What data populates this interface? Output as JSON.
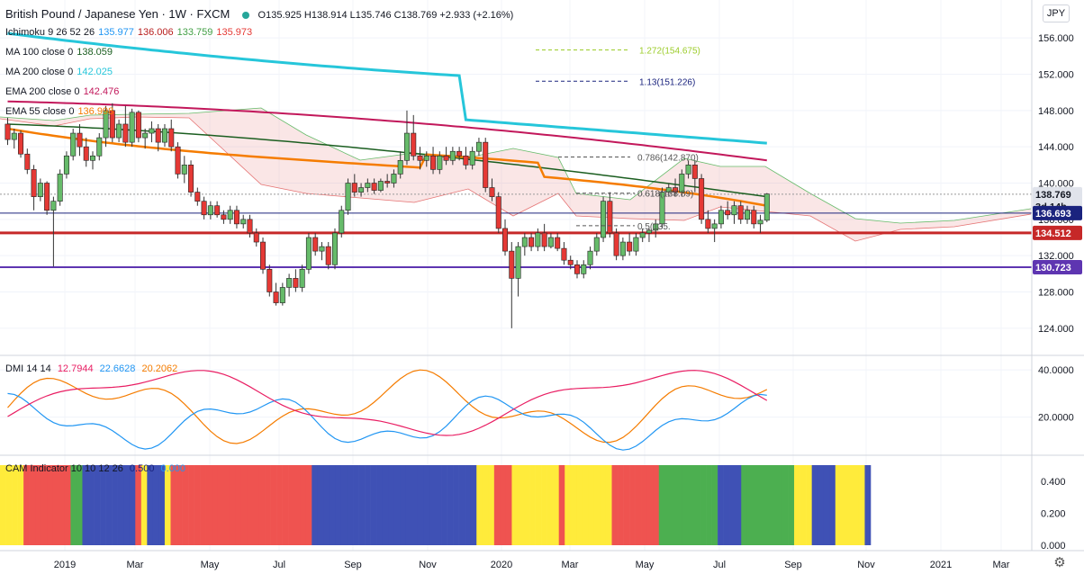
{
  "header": {
    "symbol_title": "British Pound / Japanese Yen · 1W · FXCM",
    "ohlc": "O135.925  H138.914  L135.746  C138.769  +2.933 (+2.16%)",
    "currency_button": "JPY"
  },
  "indicators": [
    {
      "name": "Ichimoku 9 26 52 26",
      "values": [
        {
          "v": "135.977",
          "color": "#2196f3"
        },
        {
          "v": "136.006",
          "color": "#b71c1c"
        },
        {
          "v": "133.759",
          "color": "#43a047"
        },
        {
          "v": "135.973",
          "color": "#e53935"
        }
      ]
    },
    {
      "name": "MA 100 close 0",
      "values": [
        {
          "v": "138.059",
          "color": "#1b5e20"
        }
      ]
    },
    {
      "name": "MA 200 close 0",
      "values": [
        {
          "v": "142.025",
          "color": "#26c6da"
        }
      ]
    },
    {
      "name": "EMA 200 close 0",
      "values": [
        {
          "v": "142.476",
          "color": "#c2185b"
        }
      ]
    },
    {
      "name": "EMA 55 close 0",
      "values": [
        {
          "v": "136.998",
          "color": "#f57c00"
        }
      ]
    }
  ],
  "fib_labels": [
    {
      "text": "1.272(154.675)",
      "color": "#9ccc2a"
    },
    {
      "text": "1.13(151.226)",
      "color": "#1a237e"
    },
    {
      "text": "0.786(142.870)",
      "color": "#555555"
    },
    {
      "text": "0.618(138.89)",
      "color": "#555555"
    },
    {
      "text": "0.5(135.",
      "color": "#555555"
    }
  ],
  "price_badges": [
    {
      "text": "138.769",
      "bg": "#e0e3eb",
      "fg": "#131722",
      "price": 138.769
    },
    {
      "text": "3d 14h",
      "bg": "#e0e3eb",
      "fg": "#131722",
      "price": 137.4
    },
    {
      "text": "136.693",
      "bg": "#1a237e",
      "fg": "#ffffff",
      "price": 136.693
    },
    {
      "text": "134.512",
      "bg": "#c62828",
      "fg": "#ffffff",
      "price": 134.512
    },
    {
      "text": "130.723",
      "bg": "#5e35b1",
      "fg": "#ffffff",
      "price": 130.723
    }
  ],
  "dmi": {
    "label": "DMI 14 14",
    "values": [
      {
        "v": "12.7944",
        "color": "#e91e63"
      },
      {
        "v": "22.6628",
        "color": "#2196f3"
      },
      {
        "v": "20.2062",
        "color": "#f57c00"
      }
    ]
  },
  "cam": {
    "label": "CAM Indicator 10 10 12 26",
    "values": [
      {
        "v": "0.500",
        "color": "#1a237e"
      },
      {
        "v": "0.000",
        "color": "#2196f3"
      }
    ]
  },
  "chart_data": {
    "type": "candlestick",
    "timeframe": "1W",
    "y_axis": {
      "range": [
        122,
        158
      ],
      "ticks": [
        "156.000",
        "152.000",
        "148.000",
        "144.000",
        "140.000",
        "136.000",
        "132.000",
        "128.000",
        "124.000"
      ]
    },
    "dmi_axis": {
      "range": [
        5,
        45
      ],
      "ticks": [
        "40.0000",
        "20.0000"
      ]
    },
    "cam_axis": {
      "range": [
        0,
        0.5
      ],
      "ticks": [
        "0.400",
        "0.200",
        "0.000"
      ]
    },
    "x_labels": [
      "2019",
      "Mar",
      "May",
      "Jul",
      "Sep",
      "Nov",
      "2020",
      "Mar",
      "May",
      "Jul",
      "Sep",
      "Nov",
      "2021",
      "Mar"
    ],
    "candles": [
      [
        146.5,
        147.2,
        144.2,
        144.8
      ],
      [
        144.8,
        146.0,
        143.8,
        145.5
      ],
      [
        145.5,
        145.8,
        142.8,
        143.2
      ],
      [
        143.2,
        143.8,
        141.0,
        141.5
      ],
      [
        141.5,
        142.0,
        137.0,
        138.5
      ],
      [
        138.5,
        140.5,
        138.0,
        140.0
      ],
      [
        140.0,
        140.2,
        136.5,
        137.0
      ],
      [
        137.0,
        138.5,
        130.8,
        138.0
      ],
      [
        138.0,
        141.5,
        137.5,
        141.0
      ],
      [
        141.0,
        143.5,
        140.5,
        143.0
      ],
      [
        143.0,
        146.0,
        142.5,
        145.5
      ],
      [
        145.5,
        146.5,
        143.0,
        144.0
      ],
      [
        144.0,
        145.0,
        141.8,
        142.5
      ],
      [
        142.5,
        143.5,
        141.5,
        143.0
      ],
      [
        143.0,
        145.5,
        142.5,
        145.0
      ],
      [
        145.0,
        148.5,
        144.0,
        148.0
      ],
      [
        148.0,
        148.8,
        144.5,
        145.0
      ],
      [
        145.0,
        147.0,
        144.5,
        146.5
      ],
      [
        146.5,
        148.5,
        144.0,
        144.5
      ],
      [
        144.5,
        148.2,
        144.0,
        147.8
      ],
      [
        147.8,
        148.0,
        144.5,
        145.0
      ],
      [
        145.0,
        146.0,
        143.8,
        145.5
      ],
      [
        145.5,
        146.8,
        144.5,
        146.0
      ],
      [
        146.0,
        146.5,
        143.5,
        144.5
      ],
      [
        144.5,
        146.5,
        144.0,
        146.0
      ],
      [
        146.0,
        147.0,
        143.5,
        144.0
      ],
      [
        144.0,
        144.5,
        140.5,
        141.0
      ],
      [
        141.0,
        143.0,
        140.0,
        142.0
      ],
      [
        142.0,
        142.5,
        138.5,
        139.0
      ],
      [
        139.0,
        139.5,
        137.5,
        138.0
      ],
      [
        138.0,
        138.5,
        136.0,
        136.5
      ],
      [
        136.5,
        138.0,
        136.0,
        137.5
      ],
      [
        137.5,
        138.0,
        136.2,
        136.5
      ],
      [
        136.5,
        137.0,
        135.5,
        136.0
      ],
      [
        136.0,
        137.5,
        135.5,
        137.0
      ],
      [
        137.0,
        137.5,
        135.0,
        135.5
      ],
      [
        135.5,
        136.5,
        135.0,
        136.0
      ],
      [
        136.0,
        136.5,
        134.0,
        134.5
      ],
      [
        134.5,
        135.0,
        133.0,
        133.5
      ],
      [
        133.5,
        134.0,
        130.0,
        130.5
      ],
      [
        130.5,
        131.0,
        127.5,
        128.0
      ],
      [
        128.0,
        129.0,
        126.5,
        126.8
      ],
      [
        126.8,
        129.0,
        126.5,
        128.5
      ],
      [
        128.5,
        130.0,
        127.5,
        129.5
      ],
      [
        129.5,
        130.5,
        128.0,
        128.5
      ],
      [
        128.5,
        131.0,
        128.0,
        130.5
      ],
      [
        130.5,
        134.5,
        130.0,
        134.0
      ],
      [
        134.0,
        134.5,
        132.0,
        132.5
      ],
      [
        132.5,
        133.5,
        131.5,
        133.0
      ],
      [
        133.0,
        133.5,
        130.5,
        131.0
      ],
      [
        131.0,
        135.0,
        130.5,
        134.5
      ],
      [
        134.5,
        137.5,
        134.0,
        137.0
      ],
      [
        137.0,
        140.5,
        136.5,
        140.0
      ],
      [
        140.0,
        141.0,
        138.5,
        139.0
      ],
      [
        139.0,
        140.0,
        138.5,
        139.5
      ],
      [
        139.5,
        140.5,
        139.0,
        140.0
      ],
      [
        140.0,
        140.5,
        138.8,
        139.2
      ],
      [
        139.2,
        140.5,
        139.0,
        140.2
      ],
      [
        140.2,
        141.0,
        139.5,
        140.0
      ],
      [
        140.0,
        141.5,
        139.5,
        141.0
      ],
      [
        141.0,
        143.5,
        140.5,
        142.5
      ],
      [
        142.5,
        148.0,
        142.0,
        145.5
      ],
      [
        145.5,
        147.5,
        142.5,
        143.0
      ],
      [
        143.0,
        144.0,
        141.5,
        142.5
      ],
      [
        142.5,
        143.5,
        141.8,
        143.0
      ],
      [
        143.0,
        144.0,
        141.0,
        141.5
      ],
      [
        141.5,
        143.5,
        141.0,
        143.0
      ],
      [
        143.0,
        144.0,
        142.0,
        142.5
      ],
      [
        142.5,
        144.0,
        142.0,
        143.5
      ],
      [
        143.5,
        144.0,
        142.5,
        143.0
      ],
      [
        143.0,
        144.0,
        141.5,
        142.0
      ],
      [
        142.0,
        144.0,
        141.5,
        143.5
      ],
      [
        143.5,
        145.0,
        143.0,
        144.5
      ],
      [
        144.5,
        145.0,
        139.0,
        139.5
      ],
      [
        139.5,
        140.5,
        138.0,
        138.5
      ],
      [
        138.5,
        139.0,
        134.5,
        135.0
      ],
      [
        135.0,
        136.0,
        132.0,
        132.5
      ],
      [
        132.5,
        133.5,
        124.0,
        129.5
      ],
      [
        129.5,
        133.5,
        127.5,
        133.0
      ],
      [
        133.0,
        134.5,
        132.0,
        134.0
      ],
      [
        134.0,
        134.5,
        132.5,
        133.0
      ],
      [
        133.0,
        135.0,
        132.5,
        134.5
      ],
      [
        134.5,
        135.5,
        132.5,
        133.0
      ],
      [
        133.0,
        134.5,
        132.8,
        134.0
      ],
      [
        134.0,
        134.5,
        132.5,
        132.8
      ],
      [
        132.8,
        133.5,
        131.0,
        131.5
      ],
      [
        131.5,
        132.0,
        130.5,
        131.0
      ],
      [
        131.0,
        131.5,
        129.5,
        130.0
      ],
      [
        130.0,
        131.5,
        129.5,
        131.0
      ],
      [
        131.0,
        133.0,
        130.5,
        132.5
      ],
      [
        132.5,
        134.5,
        132.0,
        134.0
      ],
      [
        134.0,
        138.5,
        133.5,
        138.0
      ],
      [
        138.0,
        139.0,
        134.0,
        134.5
      ],
      [
        134.5,
        135.0,
        131.5,
        132.0
      ],
      [
        132.0,
        134.0,
        131.5,
        133.5
      ],
      [
        133.5,
        134.5,
        132.0,
        132.5
      ],
      [
        132.5,
        134.5,
        132.0,
        134.0
      ],
      [
        134.0,
        135.0,
        133.5,
        134.5
      ],
      [
        134.5,
        135.0,
        133.5,
        134.8
      ],
      [
        134.8,
        136.0,
        134.0,
        135.5
      ],
      [
        135.5,
        139.5,
        135.0,
        139.0
      ],
      [
        139.0,
        140.0,
        138.5,
        139.5
      ],
      [
        139.5,
        140.5,
        138.5,
        139.0
      ],
      [
        139.0,
        141.5,
        138.5,
        141.0
      ],
      [
        141.0,
        142.5,
        140.5,
        142.0
      ],
      [
        142.0,
        142.5,
        139.0,
        140.5
      ],
      [
        140.5,
        141.0,
        135.5,
        136.0
      ],
      [
        136.0,
        137.0,
        134.5,
        135.0
      ],
      [
        135.0,
        136.0,
        133.5,
        135.5
      ],
      [
        135.5,
        137.5,
        135.0,
        137.0
      ],
      [
        137.0,
        138.0,
        136.0,
        136.5
      ],
      [
        136.5,
        138.0,
        135.5,
        137.5
      ],
      [
        137.5,
        138.0,
        135.5,
        136.0
      ],
      [
        136.0,
        137.5,
        135.5,
        137.0
      ],
      [
        137.0,
        137.5,
        135.0,
        135.5
      ],
      [
        135.5,
        136.5,
        134.5,
        135.9
      ],
      [
        135.9,
        138.9,
        135.7,
        138.8
      ]
    ]
  }
}
